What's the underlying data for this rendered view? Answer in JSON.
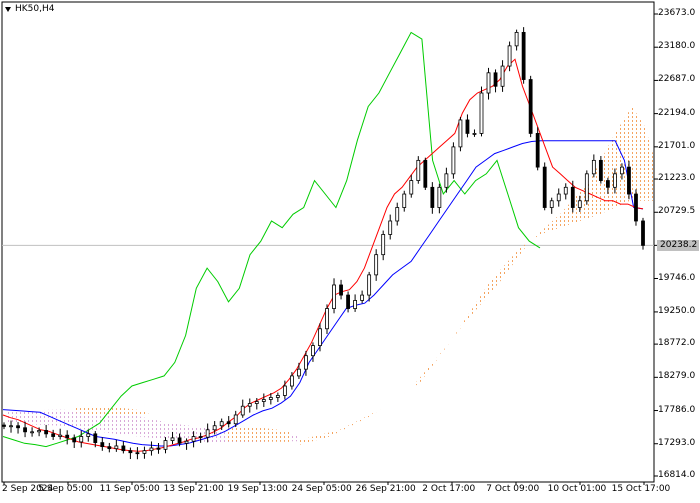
{
  "symbol": "HK50,H4",
  "price_axis": [
    "23673.0",
    "23180.0",
    "22687.0",
    "22194.0",
    "21701.0",
    "21223.0",
    "20729.5",
    "20238.2",
    "19746.0",
    "19250.0",
    "18772.0",
    "18279.0",
    "17786.0",
    "17293.0",
    "16814.0"
  ],
  "current_price_label": "20238.2",
  "time_axis": [
    "2 Sep 2024",
    "5 Sep 05:00",
    "11 Sep 05:00",
    "13 Sep 21:00",
    "19 Sep 13:00",
    "24 Sep 05:00",
    "26 Sep 21:00",
    "2 Oct 17:00",
    "7 Oct 09:00",
    "10 Oct 01:00",
    "15 Oct 17:00"
  ],
  "colors": {
    "tenkan": "#ff0000",
    "kijun": "#0000ff",
    "chikou": "#00cc00",
    "cloud_bull": "#f4a460",
    "cloud_bear": "#d8a8d8",
    "candle": "#000000",
    "price_line": "#c0c0c0"
  },
  "chart_data": {
    "type": "candlestick",
    "title": "HK50,H4",
    "ylim": [
      16814,
      23673
    ],
    "indicator": "Ichimoku",
    "current_price": 20238.2,
    "close_path": [
      17550,
      17560,
      17530,
      17470,
      17470,
      17490,
      17440,
      17400,
      17420,
      17380,
      17320,
      17400,
      17440,
      17310,
      17250,
      17220,
      17260,
      17190,
      17160,
      17150,
      17190,
      17230,
      17210,
      17340,
      17380,
      17300,
      17330,
      17400,
      17390,
      17500,
      17560,
      17620,
      17590,
      17720,
      17850,
      17890,
      17920,
      17950,
      17980,
      18010,
      18150,
      18300,
      18400,
      18600,
      18750,
      19000,
      19300,
      19650,
      19500,
      19300,
      19420,
      19500,
      19800,
      20100,
      20400,
      20600,
      20800,
      21000,
      21200,
      21500,
      21100,
      20800,
      21100,
      21300,
      21700,
      22100,
      21900,
      21900,
      22500,
      22800,
      22600,
      22900,
      23200,
      23400,
      22700,
      21900,
      21400,
      20800,
      20900,
      21000,
      21100,
      20800,
      20900,
      21300,
      21500,
      21200,
      21100,
      21300,
      21400,
      21000,
      20600,
      20238
    ],
    "tenkan_path": [
      17720,
      17680,
      17650,
      17600,
      17550,
      17500,
      17480,
      17440,
      17400,
      17360,
      17320,
      17300,
      17280,
      17260,
      17240,
      17220,
      17200,
      17190,
      17180,
      17190,
      17210,
      17230,
      17260,
      17290,
      17320,
      17360,
      17380,
      17420,
      17470,
      17530,
      17620,
      17700,
      17820,
      17900,
      17950,
      18000,
      18050,
      18120,
      18250,
      18400,
      18600,
      18800,
      19050,
      19300,
      19500,
      19550,
      19580,
      19700,
      19900,
      20200,
      20500,
      20800,
      21000,
      21100,
      21250,
      21400,
      21500,
      21600,
      21700,
      21800,
      21900,
      22200,
      22400,
      22500,
      22550,
      22600,
      22700,
      22900,
      23000,
      22600,
      22300,
      22000,
      21700,
      21400,
      21300,
      21200,
      21100,
      21050,
      21000,
      20950,
      20900,
      20900,
      20850,
      20850,
      20800,
      20780
    ],
    "kijun_path": [
      17800,
      17790,
      17780,
      17770,
      17760,
      17700,
      17640,
      17580,
      17520,
      17460,
      17400,
      17380,
      17360,
      17330,
      17300,
      17280,
      17270,
      17260,
      17260,
      17280,
      17300,
      17340,
      17380,
      17420,
      17480,
      17560,
      17640,
      17720,
      17780,
      17820,
      17900,
      18000,
      18200,
      18500,
      18700,
      18900,
      19100,
      19300,
      19350,
      19380,
      19500,
      19650,
      19800,
      19900,
      20000,
      20200,
      20400,
      20600,
      20800,
      21000,
      21200,
      21400,
      21500,
      21600,
      21650,
      21700,
      21750,
      21780,
      21790,
      21790,
      21790,
      21790,
      21790,
      21790,
      21790,
      21790,
      21790,
      21500,
      20800,
      20780
    ],
    "chikou_path": [
      17400,
      17350,
      17300,
      17280,
      17250,
      17300,
      17350,
      17400,
      17500,
      17600,
      17800,
      18000,
      18150,
      18200,
      18250,
      18300,
      18500,
      18900,
      19600,
      19900,
      19700,
      19400,
      19600,
      20100,
      20300,
      20600,
      20500,
      20700,
      20800,
      21200,
      21000,
      20800,
      21200,
      21800,
      22300,
      22500,
      22800,
      23100,
      23400,
      23300,
      21500,
      21000,
      21200,
      21000,
      21200,
      21300,
      21500,
      21000,
      20500,
      20300,
      20200
    ],
    "cloud_bear": {
      "start_price": 17550,
      "end_price": 17300
    },
    "cloud_bull": {
      "start_price": 17700,
      "end_price": 22300
    }
  }
}
